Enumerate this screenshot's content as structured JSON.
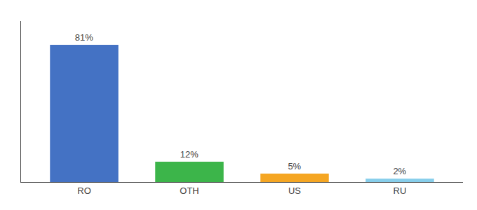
{
  "chart_data": {
    "type": "bar",
    "categories": [
      "RO",
      "OTH",
      "US",
      "RU"
    ],
    "values": [
      81,
      12,
      5,
      2
    ],
    "value_labels": [
      "81%",
      "12%",
      "5%",
      "2%"
    ],
    "colors": [
      "#4472c4",
      "#3cb54a",
      "#f5a623",
      "#87ceeb"
    ],
    "ylim": [
      0,
      95
    ],
    "grid": false,
    "data_labels": true,
    "tick_labels": "x"
  }
}
